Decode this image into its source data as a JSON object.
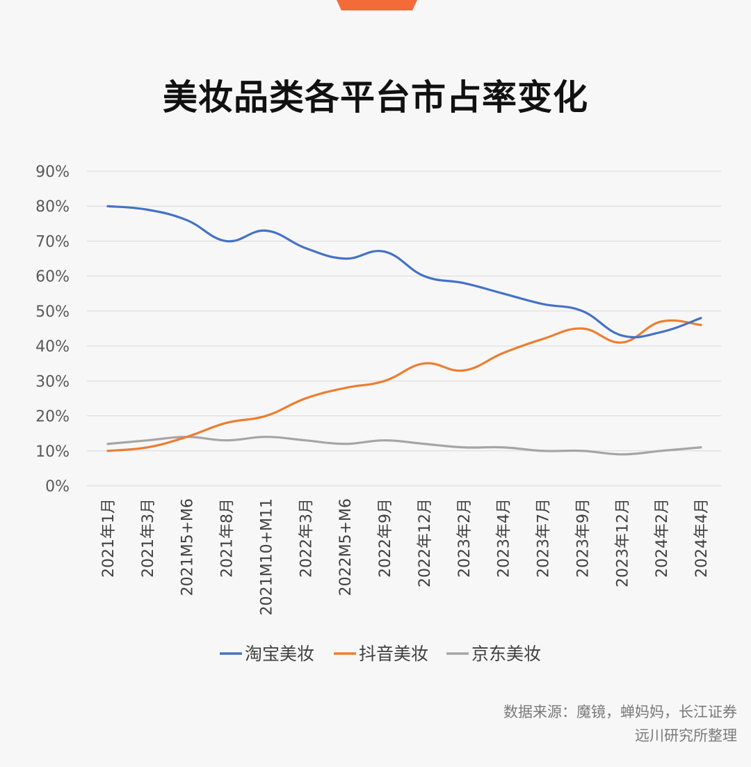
{
  "title": "美妆品类各平台市占率变化",
  "source_line1": "数据来源：魔镜，蝉妈妈，长江证券",
  "source_line2": "远川研究所整理",
  "chart_data": {
    "type": "line",
    "title": "美妆品类各平台市占率变化",
    "categories": [
      "2021年1月",
      "2021年3月",
      "2021M5+M6",
      "2021年8月",
      "2021M10+M11",
      "2022年3月",
      "2022M5+M6",
      "2022年9月",
      "2022年12月",
      "2023年2月",
      "2023年4月",
      "2023年7月",
      "2023年9月",
      "2023年12月",
      "2024年2月",
      "2024年4月"
    ],
    "yticks": [
      "0%",
      "10%",
      "20%",
      "30%",
      "40%",
      "50%",
      "60%",
      "70%",
      "80%",
      "90%"
    ],
    "ylim": [
      0,
      90
    ],
    "grid": true,
    "legend_position": "bottom",
    "series": [
      {
        "name": "淘宝美妆",
        "color": "#4472c4",
        "values": [
          80,
          79,
          76,
          70,
          73,
          68,
          65,
          67,
          60,
          58,
          55,
          52,
          50,
          43,
          44,
          48
        ]
      },
      {
        "name": "抖音美妆",
        "color": "#ed7d31",
        "values": [
          10,
          11,
          14,
          18,
          20,
          25,
          28,
          30,
          35,
          33,
          38,
          42,
          45,
          41,
          47,
          46
        ]
      },
      {
        "name": "京东美妆",
        "color": "#a5a5a5",
        "values": [
          12,
          13,
          14,
          13,
          14,
          13,
          12,
          13,
          12,
          11,
          11,
          10,
          10,
          9,
          10,
          11
        ]
      }
    ]
  }
}
